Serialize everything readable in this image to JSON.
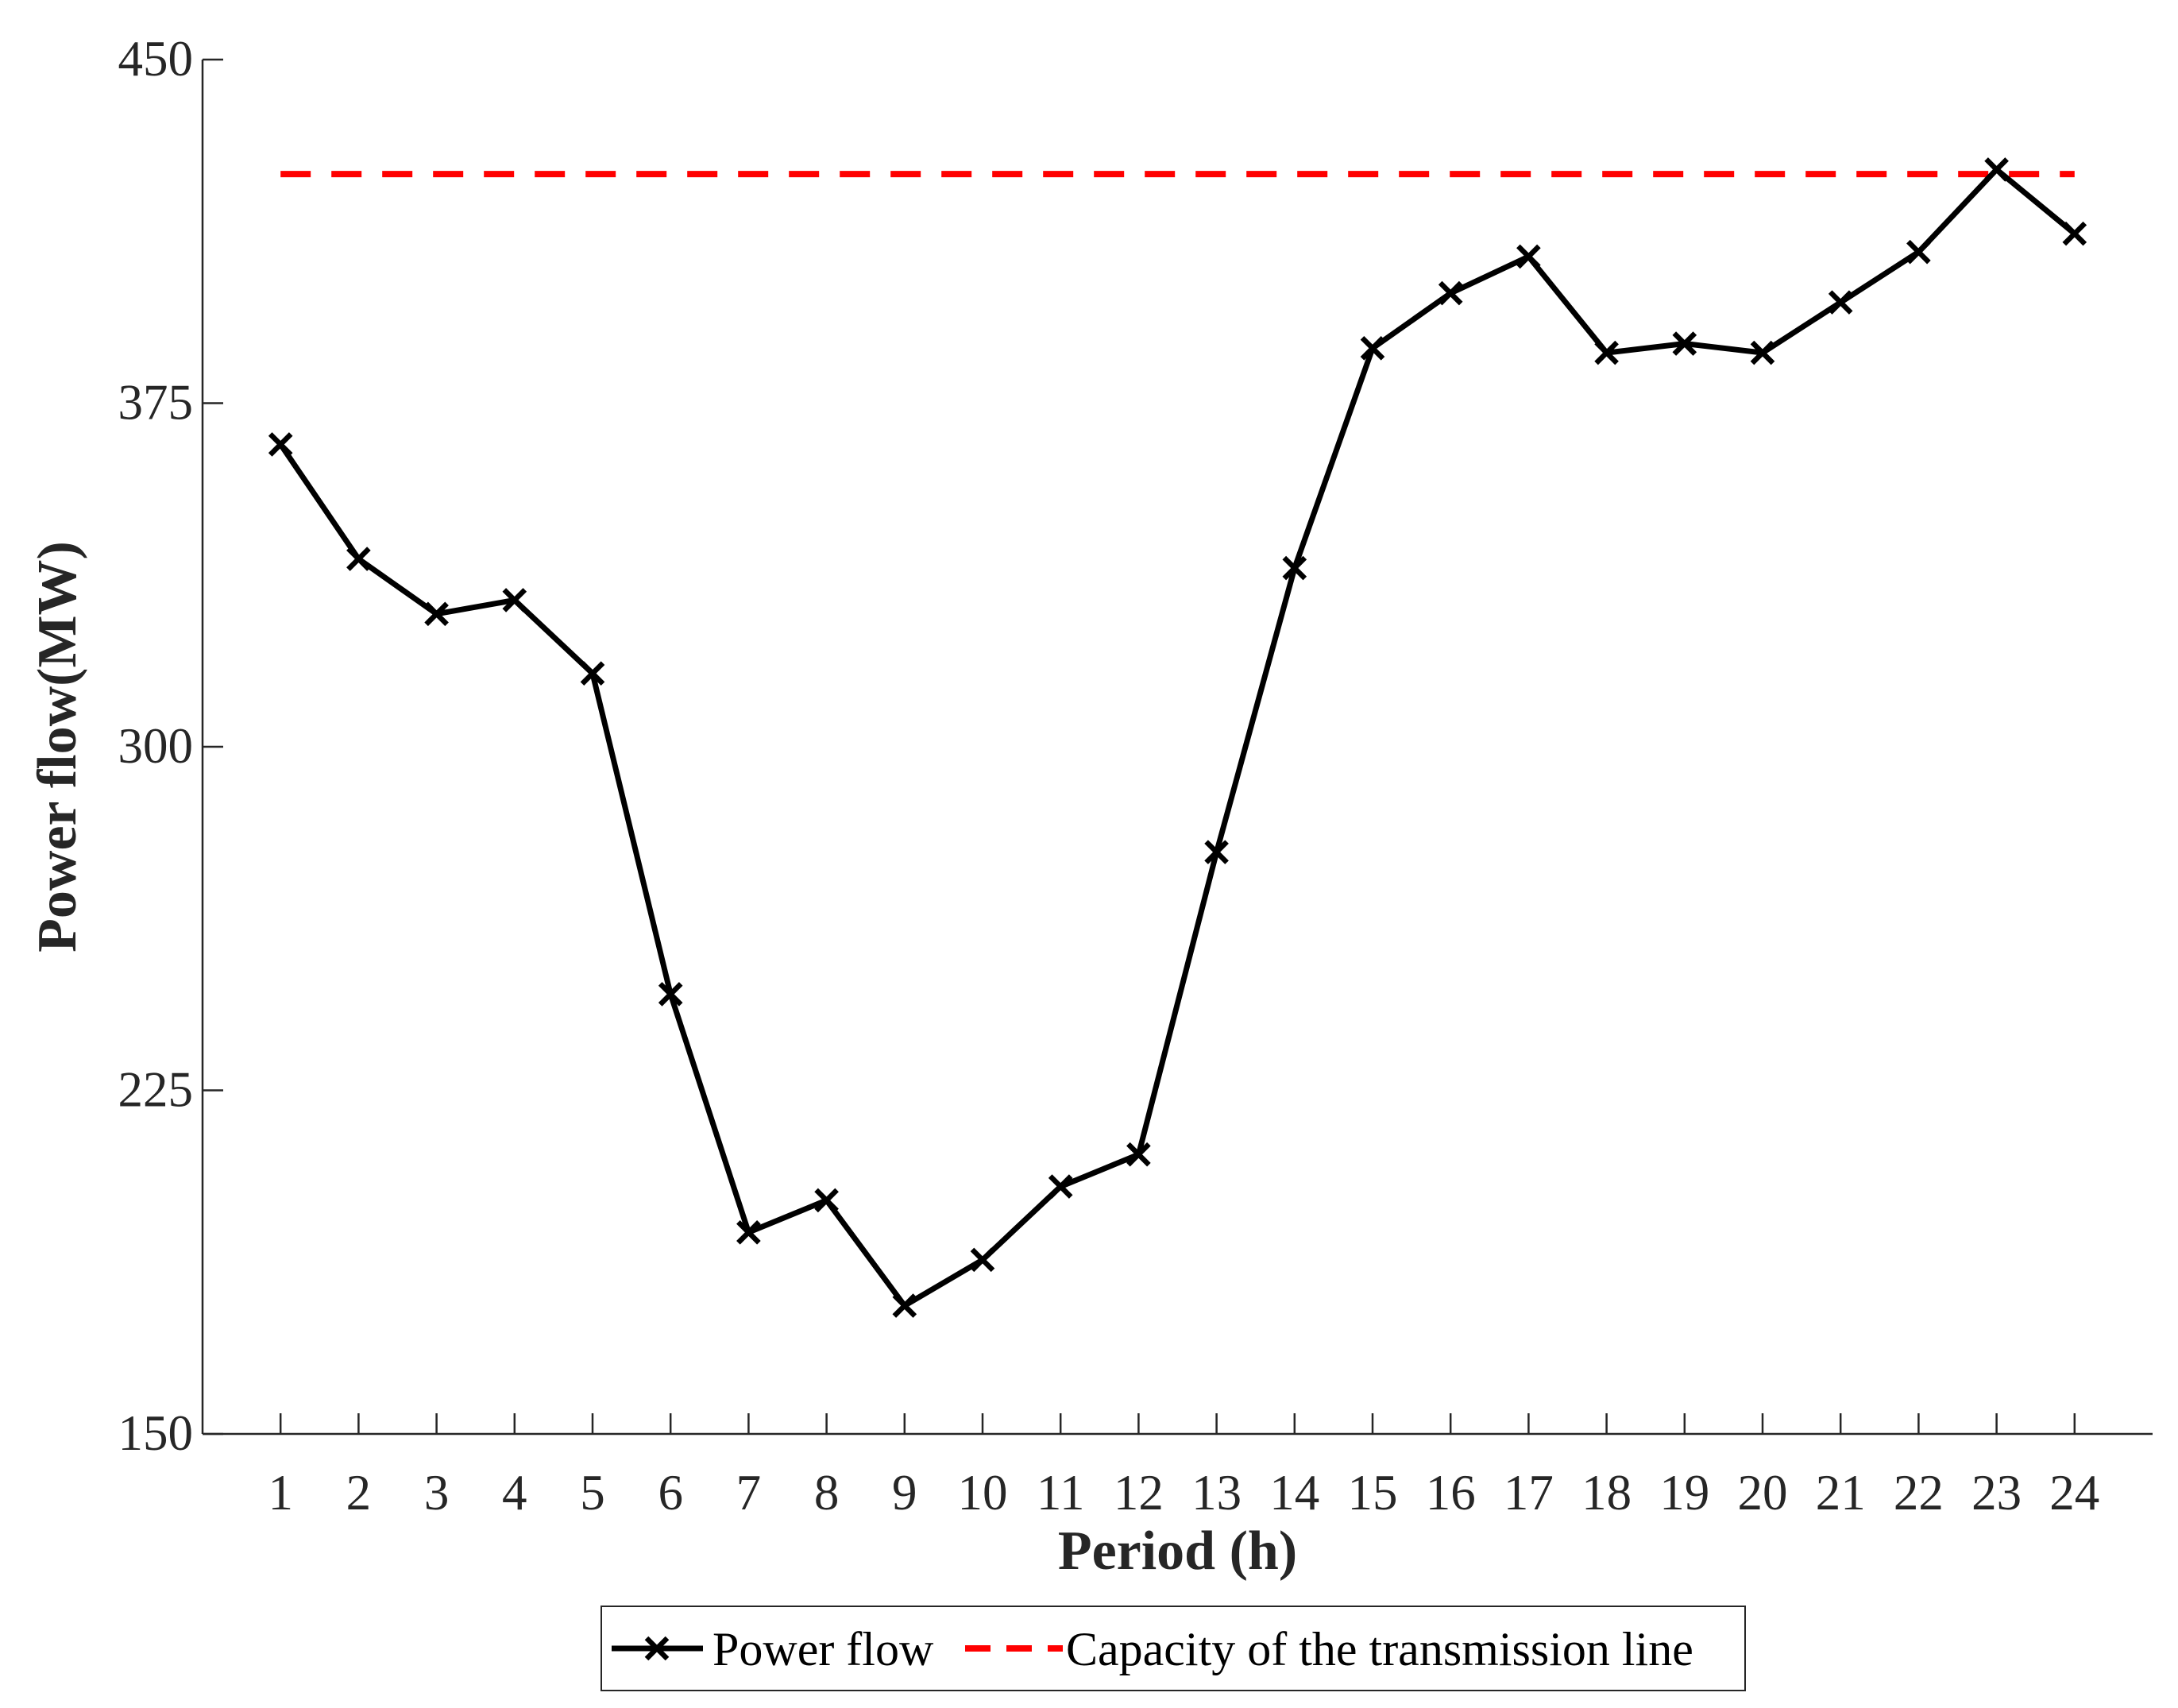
{
  "chart_data": {
    "type": "line",
    "xlabel": "Period (h)",
    "ylabel": "Power flow(MW)",
    "x": [
      1,
      2,
      3,
      4,
      5,
      6,
      7,
      8,
      9,
      10,
      11,
      12,
      13,
      14,
      15,
      16,
      17,
      18,
      19,
      20,
      21,
      22,
      23,
      24
    ],
    "xlim": [
      0,
      25
    ],
    "ylim": [
      150,
      450
    ],
    "yticks": [
      150,
      225,
      300,
      375,
      450
    ],
    "grid": false,
    "legend_position": "bottom-center",
    "series": [
      {
        "name": "Power flow",
        "color": "#000000",
        "line_style": "solid",
        "marker": "x",
        "values": [
          366,
          341,
          329,
          332,
          316,
          246,
          194,
          201,
          178,
          188,
          204,
          211,
          277,
          339,
          387,
          399,
          407,
          386,
          388,
          386,
          397,
          408,
          426,
          412
        ]
      },
      {
        "name": "Capacity of the transmission line",
        "color": "#ff0000",
        "line_style": "dashed",
        "marker": "none",
        "values": [
          425,
          425,
          425,
          425,
          425,
          425,
          425,
          425,
          425,
          425,
          425,
          425,
          425,
          425,
          425,
          425,
          425,
          425,
          425,
          425,
          425,
          425,
          425,
          425
        ]
      }
    ]
  }
}
